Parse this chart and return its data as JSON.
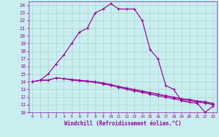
{
  "xlabel": "Windchill (Refroidissement éolien,°C)",
  "bg_color": "#c8eef0",
  "line_color": "#990099",
  "grid_color": "#b0c8c8",
  "xlim": [
    -0.5,
    23.5
  ],
  "ylim": [
    10,
    24.5
  ],
  "yticks": [
    10,
    11,
    12,
    13,
    14,
    15,
    16,
    17,
    18,
    19,
    20,
    21,
    22,
    23,
    24
  ],
  "xticks": [
    0,
    1,
    2,
    3,
    4,
    5,
    6,
    7,
    8,
    9,
    10,
    11,
    12,
    13,
    14,
    15,
    16,
    17,
    18,
    19,
    20,
    21,
    22,
    23
  ],
  "series_main_x": [
    0,
    1,
    2,
    3,
    4,
    5,
    6,
    7,
    8,
    9,
    10,
    11,
    12,
    13,
    14,
    15,
    16,
    17,
    18,
    19,
    20,
    21,
    22,
    23
  ],
  "series_main_y": [
    14.0,
    14.2,
    15.0,
    16.3,
    17.5,
    19.0,
    20.5,
    21.0,
    23.0,
    23.5,
    24.2,
    23.5,
    23.5,
    23.5,
    22.0,
    18.2,
    17.0,
    13.5,
    13.0,
    11.5,
    11.3,
    11.2,
    10.0,
    10.8
  ],
  "series1_x": [
    0,
    1,
    2,
    3,
    4,
    5,
    6,
    7,
    8,
    9,
    10,
    11,
    12,
    13,
    14,
    15,
    16,
    17,
    18,
    19,
    20,
    21,
    22,
    23
  ],
  "series1_y": [
    14.0,
    14.2,
    14.2,
    14.5,
    14.4,
    14.3,
    14.2,
    14.1,
    14.0,
    13.8,
    13.6,
    13.4,
    13.2,
    13.0,
    12.8,
    12.6,
    12.4,
    12.2,
    12.0,
    11.8,
    11.7,
    11.5,
    11.4,
    11.2
  ],
  "series2_x": [
    0,
    1,
    2,
    3,
    4,
    5,
    6,
    7,
    8,
    9,
    10,
    11,
    12,
    13,
    14,
    15,
    16,
    17,
    18,
    19,
    20,
    21,
    22,
    23
  ],
  "series2_y": [
    14.0,
    14.2,
    14.2,
    14.5,
    14.4,
    14.3,
    14.2,
    14.1,
    14.0,
    13.85,
    13.65,
    13.35,
    13.1,
    12.9,
    12.7,
    12.5,
    12.3,
    12.1,
    11.9,
    11.7,
    11.65,
    11.45,
    11.3,
    11.1
  ],
  "series3_x": [
    0,
    1,
    2,
    3,
    4,
    5,
    6,
    7,
    8,
    9,
    10,
    11,
    12,
    13,
    14,
    15,
    16,
    17,
    18,
    19,
    20,
    21,
    22,
    23
  ],
  "series3_y": [
    14.0,
    14.2,
    14.2,
    14.5,
    14.4,
    14.2,
    14.1,
    14.0,
    13.9,
    13.7,
    13.5,
    13.25,
    13.0,
    12.8,
    12.6,
    12.35,
    12.15,
    11.95,
    11.75,
    11.55,
    11.5,
    11.35,
    11.2,
    11.0
  ]
}
